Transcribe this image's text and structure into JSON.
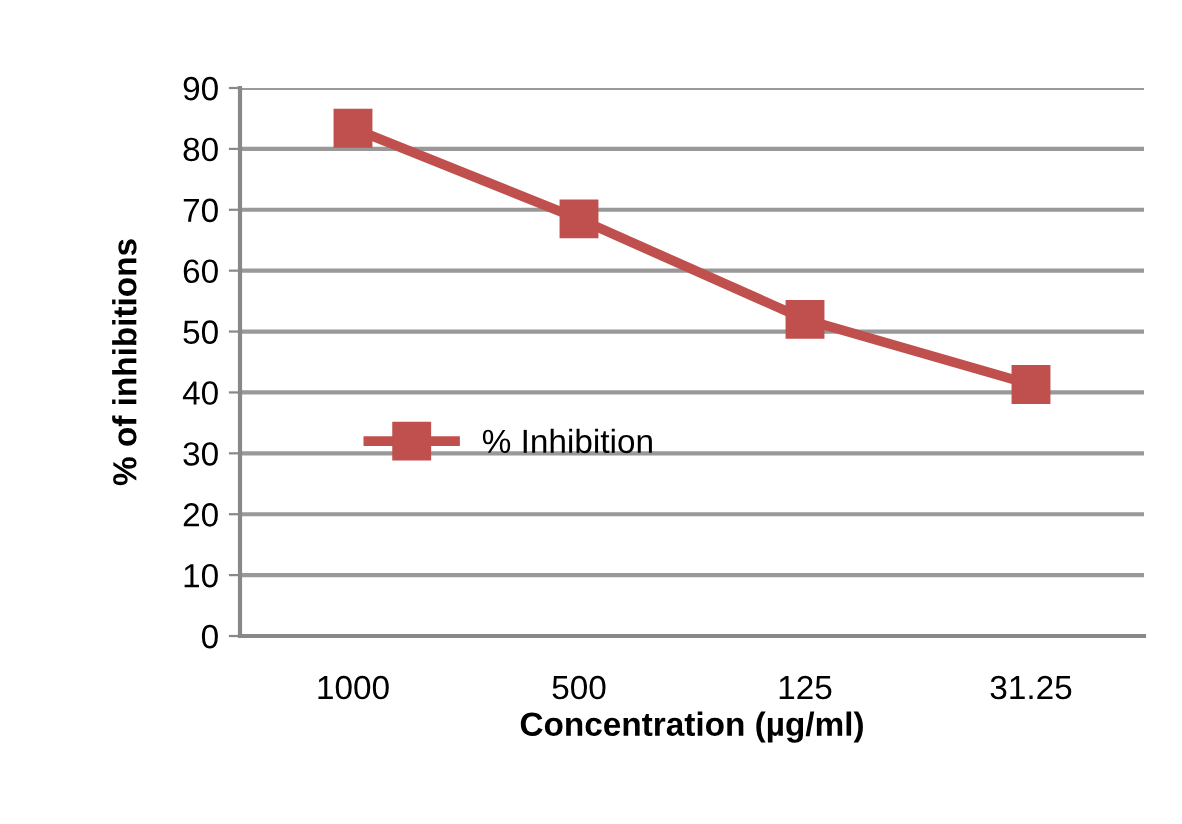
{
  "chart_data": {
    "type": "line",
    "xlabel": "Concentration (µg/ml)",
    "ylabel": "% of inhibitions",
    "categories": [
      "1000",
      "500",
      "125",
      "31.25"
    ],
    "series": [
      {
        "name": "% Inhibition",
        "color": "#c0504d",
        "values": [
          83.4,
          68.5,
          52.0,
          41.3
        ]
      }
    ],
    "ylim": [
      0,
      90
    ],
    "yticks": [
      0,
      10,
      20,
      30,
      40,
      50,
      60,
      70,
      80,
      90
    ],
    "grid": "y",
    "legend": "center",
    "marker": "square",
    "line_style": "solid"
  }
}
